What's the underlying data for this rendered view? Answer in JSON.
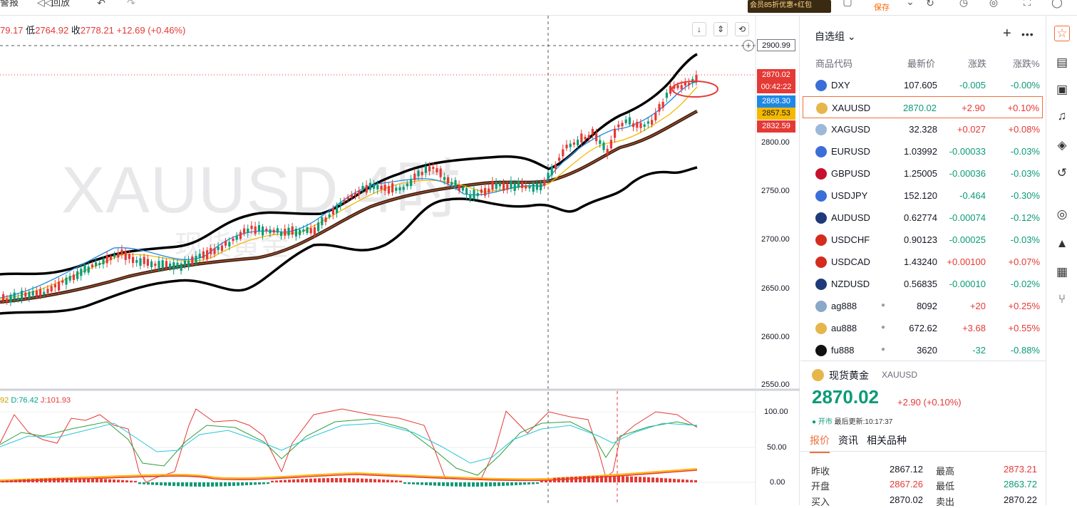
{
  "topbar": {
    "item1": "警报",
    "item2": "回放",
    "promo": "会员85折优惠+红包",
    "save_label": "保存"
  },
  "chart": {
    "ohlc": {
      "high_partial": "79.17",
      "low_label": "低",
      "low": "2764.92",
      "close_label": "收",
      "close": "2778.21",
      "change": "+12.69",
      "change_pct": "(+0.46%)"
    },
    "watermark": "XAUUSD,4时",
    "watermark_sub": "现货黄金",
    "price_tags": {
      "crosshair": "2900.99",
      "last": "2870.02",
      "countdown": "00:42:22",
      "blue": "2868.30",
      "orange": "2857.53",
      "red": "2832.59"
    },
    "price_axis": [
      "2800.00",
      "2750.00",
      "2700.00",
      "2650.00",
      "2600.00",
      "2550.00"
    ],
    "kdj": {
      "k_label": "92",
      "d_label": "D:76.42",
      "j_label": "J:101.93"
    },
    "kdj_axis": [
      "100.00",
      "50.00",
      "0.00"
    ]
  },
  "watchlist": {
    "title": "自选组",
    "columns": {
      "code": "商品代码",
      "price": "最新价",
      "change": "涨跌",
      "pct": "涨跌%"
    },
    "rows": [
      {
        "symbol": "DXY",
        "price": "107.605",
        "change": "-0.005",
        "pct": "-0.00%",
        "dir": "dn",
        "flag": "#3c6ed8"
      },
      {
        "symbol": "XAUUSD",
        "price": "2870.02",
        "change": "+2.90",
        "pct": "+0.10%",
        "dir": "up",
        "flag": "#e6b64a"
      },
      {
        "symbol": "XAGUSD",
        "price": "32.328",
        "change": "+0.027",
        "pct": "+0.08%",
        "dir": "up",
        "flag": "#9db8d8"
      },
      {
        "symbol": "EURUSD",
        "price": "1.03992",
        "change": "-0.00033",
        "pct": "-0.03%",
        "dir": "dn",
        "flag": "#3c6ed8"
      },
      {
        "symbol": "GBPUSD",
        "price": "1.25005",
        "change": "-0.00036",
        "pct": "-0.03%",
        "dir": "dn",
        "flag": "#c8102e"
      },
      {
        "symbol": "USDJPY",
        "price": "152.120",
        "change": "-0.464",
        "pct": "-0.30%",
        "dir": "dn",
        "flag": "#3c6ed8"
      },
      {
        "symbol": "AUDUSD",
        "price": "0.62774",
        "change": "-0.00074",
        "pct": "-0.12%",
        "dir": "dn",
        "flag": "#1f3a7a"
      },
      {
        "symbol": "USDCHF",
        "price": "0.90123",
        "change": "-0.00025",
        "pct": "-0.03%",
        "dir": "dn",
        "flag": "#d52b1e"
      },
      {
        "symbol": "USDCAD",
        "price": "1.43240",
        "change": "+0.00100",
        "pct": "+0.07%",
        "dir": "up",
        "flag": "#d52b1e"
      },
      {
        "symbol": "NZDUSD",
        "price": "0.56835",
        "change": "-0.00010",
        "pct": "-0.02%",
        "dir": "dn",
        "flag": "#1f3a7a"
      },
      {
        "symbol": "ag888",
        "price": "8092",
        "change": "+20",
        "pct": "+0.25%",
        "dir": "up",
        "flag": "#8aa8c8",
        "dot": "●"
      },
      {
        "symbol": "au888",
        "price": "672.62",
        "change": "+3.68",
        "pct": "+0.55%",
        "dir": "up",
        "flag": "#e6b64a",
        "dot": "●"
      },
      {
        "symbol": "fu888",
        "price": "3620",
        "change": "-32",
        "pct": "-0.88%",
        "dir": "dn",
        "flag": "#111111",
        "dot": "●"
      }
    ]
  },
  "detail": {
    "name": "现货黄金",
    "code": "XAUUSD",
    "price": "2870.02",
    "change": "+2.90 (+0.10%)",
    "status_open": "● 开市",
    "status_updated": "最后更新:10:17:37",
    "tabs": [
      "报价",
      "资讯",
      "相关品种"
    ],
    "quotes": {
      "prev_close_label": "昨收",
      "prev_close": "2867.12",
      "high_label": "最高",
      "high": "2873.21",
      "open_label": "开盘",
      "open": "2867.26",
      "low_label": "最低",
      "low": "2863.72",
      "bid_label": "买入",
      "bid": "2870.02",
      "ask_label": "卖出",
      "ask": "2870.22"
    }
  },
  "colors": {
    "up": "#e53935",
    "down": "#0b9b77",
    "accent": "#f0703c"
  }
}
